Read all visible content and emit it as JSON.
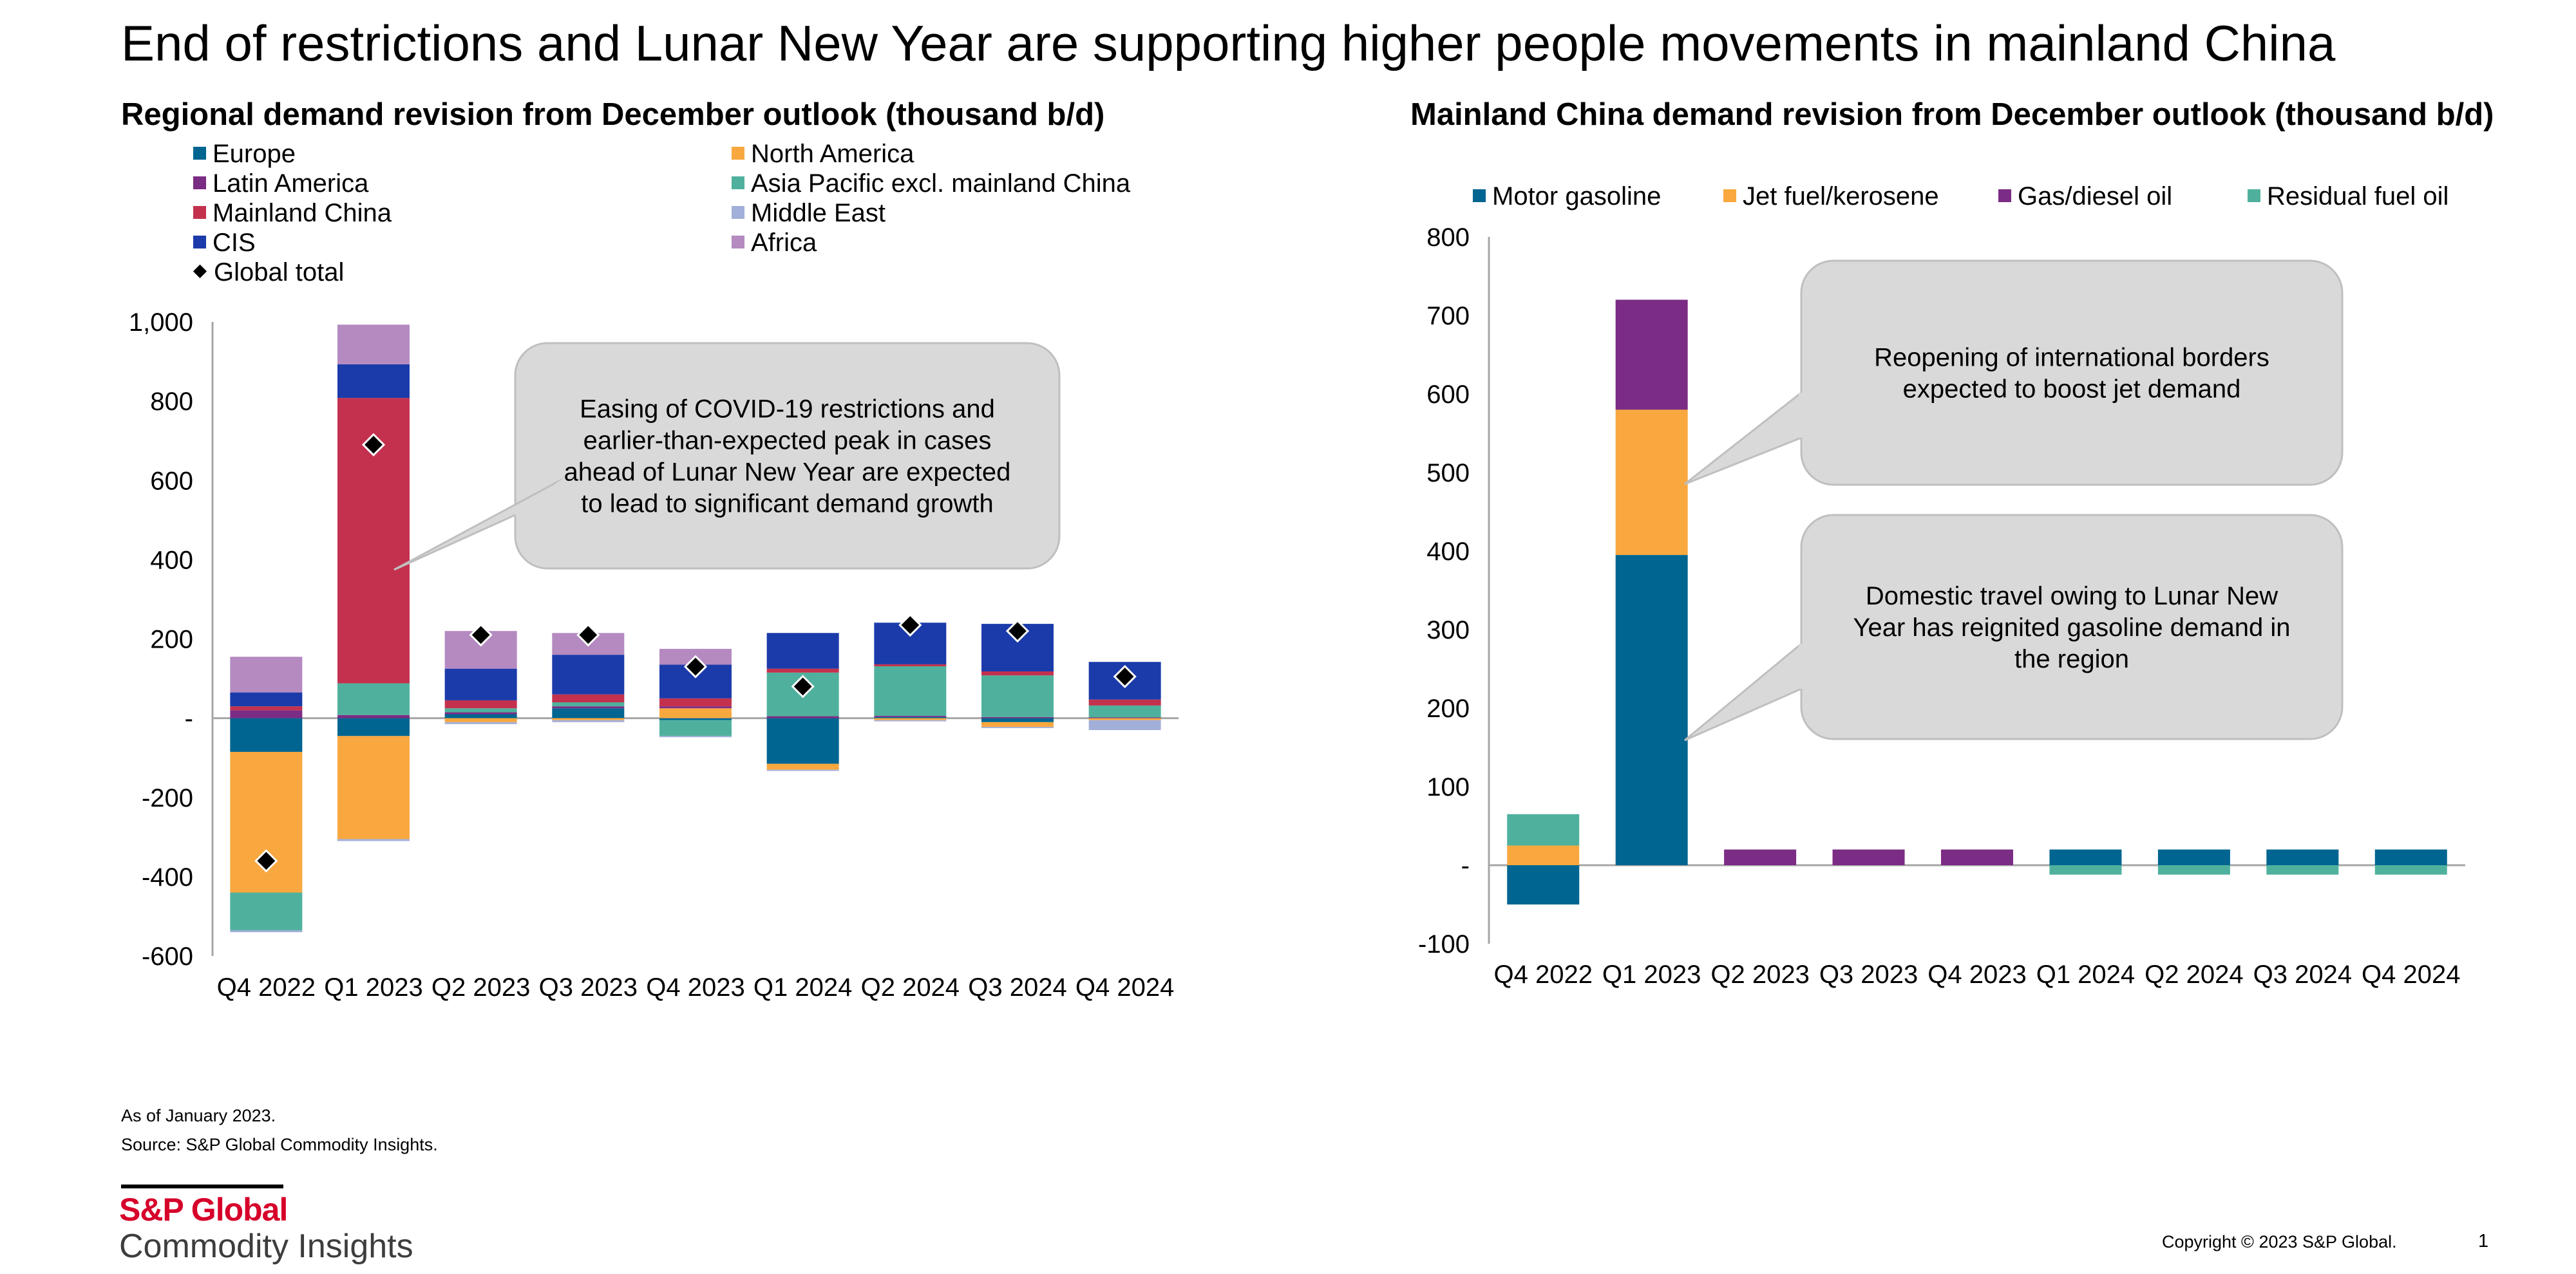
{
  "page": {
    "title": "End of restrictions and Lunar New Year are supporting higher people movements in mainland China",
    "notes": [
      "As of January 2023.",
      "Source: S&P Global Commodity Insights."
    ],
    "logo": {
      "name": "S&P Global",
      "subtitle": "Commodity Insights"
    },
    "copyright": "Copyright © 2023 S&P Global.",
    "page_number": "1"
  },
  "chart_data": [
    {
      "type": "bar",
      "stacked": true,
      "title": "Regional demand revision from December outlook (thousand b/d)",
      "categories": [
        "Q4 2022",
        "Q1 2023",
        "Q2 2023",
        "Q3 2023",
        "Q4 2023",
        "Q1 2024",
        "Q2 2024",
        "Q3 2024",
        "Q4 2024"
      ],
      "ylim": [
        -600,
        1000
      ],
      "yticks": [
        1000,
        800,
        600,
        400,
        200,
        0,
        -200,
        -400,
        -600
      ],
      "ytick_labels": [
        "1,000",
        "800",
        "600",
        "400",
        "200",
        "-",
        "-200",
        "-400",
        "-600"
      ],
      "legend_position": "top",
      "series": [
        {
          "name": "Europe",
          "color": "#006591",
          "values": [
            -85,
            -45,
            10,
            25,
            -5,
            -115,
            3,
            -10,
            0
          ]
        },
        {
          "name": "North America",
          "color": "#F8A83F",
          "values": [
            -355,
            -260,
            -10,
            -5,
            25,
            -15,
            -5,
            -12,
            -5
          ]
        },
        {
          "name": "Latin America",
          "color": "#7B2C84",
          "values": [
            20,
            8,
            5,
            5,
            5,
            5,
            3,
            3,
            2
          ]
        },
        {
          "name": "Asia Pacific excl. mainland China",
          "color": "#4FB19D",
          "values": [
            -95,
            80,
            10,
            10,
            -40,
            110,
            125,
            105,
            30
          ]
        },
        {
          "name": "Mainland China",
          "color": "#C4314E",
          "values": [
            10,
            720,
            20,
            20,
            20,
            10,
            5,
            10,
            15
          ]
        },
        {
          "name": "Middle East",
          "color": "#A2AFD9",
          "values": [
            -5,
            -5,
            -5,
            -5,
            -3,
            -3,
            -3,
            -3,
            -25
          ]
        },
        {
          "name": "CIS",
          "color": "#1B3BAA",
          "values": [
            35,
            85,
            80,
            100,
            85,
            90,
            105,
            120,
            95
          ]
        },
        {
          "name": "Africa",
          "color": "#B48AC0",
          "values": [
            90,
            100,
            95,
            55,
            40,
            0,
            0,
            0,
            0
          ]
        }
      ],
      "global_total": {
        "name": "Global total",
        "values": [
          -360,
          690,
          210,
          210,
          130,
          80,
          235,
          220,
          105
        ]
      },
      "annotation": "Easing of COVID-19 restrictions and earlier-than-expected peak in cases ahead of Lunar New Year are expected to lead to significant demand growth"
    },
    {
      "type": "bar",
      "stacked": true,
      "title": "Mainland China demand revision from December outlook (thousand b/d)",
      "categories": [
        "Q4 2022",
        "Q1 2023",
        "Q2 2023",
        "Q3 2023",
        "Q4 2023",
        "Q1 2024",
        "Q2 2024",
        "Q3 2024",
        "Q4 2024"
      ],
      "ylim": [
        -100,
        800
      ],
      "yticks": [
        800,
        700,
        600,
        500,
        400,
        300,
        200,
        100,
        0,
        -100
      ],
      "ytick_labels": [
        "800",
        "700",
        "600",
        "500",
        "400",
        "300",
        "200",
        "100",
        "-",
        "-100"
      ],
      "legend_position": "top",
      "series": [
        {
          "name": "Motor gasoline",
          "color": "#006591",
          "values": [
            -50,
            395,
            0,
            0,
            0,
            20,
            20,
            20,
            20
          ]
        },
        {
          "name": "Jet fuel/kerosene",
          "color": "#F8A83F",
          "values": [
            25,
            185,
            0,
            0,
            0,
            0,
            0,
            0,
            0
          ]
        },
        {
          "name": "Gas/diesel oil",
          "color": "#7B2C84",
          "values": [
            0,
            140,
            20,
            20,
            20,
            0,
            0,
            0,
            0
          ]
        },
        {
          "name": "Residual fuel oil",
          "color": "#4FB19D",
          "values": [
            40,
            0,
            0,
            0,
            0,
            -12,
            -12,
            -12,
            -12
          ]
        }
      ],
      "annotations": [
        "Reopening of international borders expected to boost jet demand",
        "Domestic travel owing to Lunar New Year has reignited gasoline demand in the region"
      ]
    }
  ]
}
